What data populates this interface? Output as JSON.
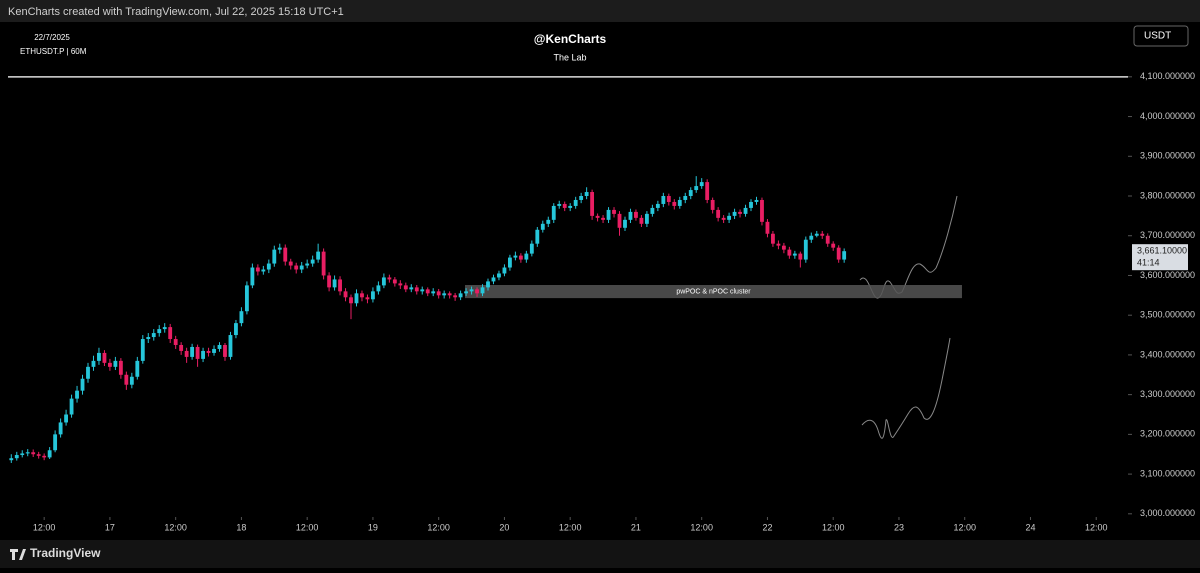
{
  "header": {
    "credit": "KenCharts created with TradingView.com, Jul 22, 2025 15:18 UTC+1",
    "date": "22/7/2025",
    "symbol": "ETHUSDT.P | 60M",
    "author": "@KenCharts",
    "subtitle": "The Lab",
    "currency": "USDT",
    "footer": "TradingView"
  },
  "chart_data": {
    "type": "candlestick",
    "up_color": "#26c6da",
    "down_color": "#e91e63",
    "xlim": [
      5.4,
      209.8
    ],
    "xticks": [
      {
        "value": 12,
        "label": "12:00"
      },
      {
        "value": 24,
        "label": "17"
      },
      {
        "value": 36,
        "label": "12:00"
      },
      {
        "value": 48,
        "label": "18"
      },
      {
        "value": 60,
        "label": "12:00"
      },
      {
        "value": 72,
        "label": "19"
      },
      {
        "value": 84,
        "label": "12:00"
      },
      {
        "value": 96,
        "label": "20"
      },
      {
        "value": 108,
        "label": "12:00"
      },
      {
        "value": 120,
        "label": "21"
      },
      {
        "value": 132,
        "label": "12:00"
      },
      {
        "value": 144,
        "label": "22"
      },
      {
        "value": 156,
        "label": "12:00"
      },
      {
        "value": 168,
        "label": "23"
      },
      {
        "value": 180,
        "label": "12:00"
      },
      {
        "value": 192,
        "label": "24"
      },
      {
        "value": 204,
        "label": "12:00"
      }
    ],
    "ylim": [
      2992,
      4238
    ],
    "yticks": [
      {
        "value": 3000,
        "label": "3,000.000000"
      },
      {
        "value": 3100,
        "label": "3,100.000000"
      },
      {
        "value": 3200,
        "label": "3,200.000000"
      },
      {
        "value": 3300,
        "label": "3,300.000000"
      },
      {
        "value": 3400,
        "label": "3,400.000000"
      },
      {
        "value": 3500,
        "label": "3,500.000000"
      },
      {
        "value": 3600,
        "label": "3,600.000000"
      },
      {
        "value": 3700,
        "label": "3,700.000000"
      },
      {
        "value": 3800,
        "label": "3,800.000000"
      },
      {
        "value": 3900,
        "label": "3,900.000000"
      },
      {
        "value": 4000,
        "label": "4,000.000000"
      },
      {
        "value": 4100,
        "label": "4,100.000000"
      }
    ],
    "hline": 4100,
    "zone": {
      "label": "pwPOC & nPOC cluster",
      "x": [
        88.8,
        179.5
      ],
      "y": [
        3543,
        3576
      ]
    },
    "last_price": {
      "value": 3661.1,
      "label": "3,661.10000"
    },
    "countdown": "41:14",
    "x": [
      6,
      7,
      8,
      9,
      10,
      11,
      12,
      13,
      14,
      15,
      16,
      17,
      18,
      19,
      20,
      21,
      22,
      23,
      24,
      25,
      26,
      27,
      28,
      29,
      30,
      31,
      32,
      33,
      34,
      35,
      36,
      37,
      38,
      39,
      40,
      41,
      42,
      43,
      44,
      45,
      46,
      47,
      48,
      49,
      50,
      51,
      52,
      53,
      54,
      55,
      56,
      57,
      58,
      59,
      60,
      61,
      62,
      63,
      64,
      65,
      66,
      67,
      68,
      69,
      70,
      71,
      72,
      73,
      74,
      75,
      76,
      77,
      78,
      79,
      80,
      81,
      82,
      83,
      84,
      85,
      86,
      87,
      88,
      89,
      90,
      91,
      92,
      93,
      94,
      95,
      96,
      97,
      98,
      99,
      100,
      101,
      102,
      103,
      104,
      105,
      106,
      107,
      108,
      109,
      110,
      111,
      112,
      113,
      114,
      115,
      116,
      117,
      118,
      119,
      120,
      121,
      122,
      123,
      124,
      125,
      126,
      127,
      128,
      129,
      130,
      131,
      132,
      133,
      134,
      135,
      136,
      137,
      138,
      139,
      140,
      141,
      142,
      143,
      144,
      145,
      146,
      147,
      148,
      149,
      150,
      151,
      152,
      153,
      154,
      155,
      156,
      157,
      158
    ],
    "candles": [
      [
        3135,
        3150,
        3128,
        3140
      ],
      [
        3140,
        3156,
        3134,
        3148
      ],
      [
        3148,
        3160,
        3142,
        3152
      ],
      [
        3152,
        3163,
        3145,
        3155
      ],
      [
        3155,
        3162,
        3143,
        3150
      ],
      [
        3150,
        3156,
        3139,
        3146
      ],
      [
        3146,
        3152,
        3135,
        3142
      ],
      [
        3142,
        3168,
        3138,
        3160
      ],
      [
        3160,
        3210,
        3155,
        3200
      ],
      [
        3200,
        3240,
        3192,
        3230
      ],
      [
        3230,
        3262,
        3222,
        3250
      ],
      [
        3250,
        3300,
        3242,
        3290
      ],
      [
        3290,
        3322,
        3280,
        3310
      ],
      [
        3310,
        3350,
        3300,
        3340
      ],
      [
        3340,
        3380,
        3330,
        3370
      ],
      [
        3370,
        3398,
        3360,
        3385
      ],
      [
        3385,
        3418,
        3375,
        3405
      ],
      [
        3405,
        3412,
        3372,
        3380
      ],
      [
        3380,
        3390,
        3360,
        3370
      ],
      [
        3370,
        3395,
        3362,
        3385
      ],
      [
        3385,
        3392,
        3340,
        3350
      ],
      [
        3350,
        3358,
        3312,
        3325
      ],
      [
        3325,
        3355,
        3316,
        3345
      ],
      [
        3345,
        3395,
        3338,
        3385
      ],
      [
        3385,
        3450,
        3378,
        3440
      ],
      [
        3440,
        3455,
        3430,
        3445
      ],
      [
        3445,
        3465,
        3436,
        3455
      ],
      [
        3455,
        3475,
        3446,
        3465
      ],
      [
        3465,
        3480,
        3456,
        3470
      ],
      [
        3470,
        3478,
        3430,
        3440
      ],
      [
        3440,
        3448,
        3415,
        3425
      ],
      [
        3425,
        3432,
        3400,
        3410
      ],
      [
        3410,
        3418,
        3380,
        3395
      ],
      [
        3395,
        3428,
        3388,
        3420
      ],
      [
        3420,
        3426,
        3370,
        3390
      ],
      [
        3390,
        3418,
        3382,
        3410
      ],
      [
        3410,
        3418,
        3396,
        3405
      ],
      [
        3405,
        3424,
        3398,
        3415
      ],
      [
        3415,
        3432,
        3408,
        3425
      ],
      [
        3425,
        3430,
        3385,
        3395
      ],
      [
        3395,
        3458,
        3388,
        3450
      ],
      [
        3450,
        3488,
        3442,
        3480
      ],
      [
        3480,
        3520,
        3472,
        3510
      ],
      [
        3510,
        3585,
        3502,
        3575
      ],
      [
        3575,
        3630,
        3568,
        3620
      ],
      [
        3620,
        3628,
        3600,
        3610
      ],
      [
        3610,
        3624,
        3602,
        3615
      ],
      [
        3615,
        3640,
        3606,
        3630
      ],
      [
        3630,
        3675,
        3622,
        3665
      ],
      [
        3665,
        3680,
        3655,
        3670
      ],
      [
        3670,
        3678,
        3625,
        3635
      ],
      [
        3635,
        3642,
        3615,
        3625
      ],
      [
        3625,
        3632,
        3605,
        3615
      ],
      [
        3615,
        3634,
        3606,
        3625
      ],
      [
        3625,
        3640,
        3618,
        3630
      ],
      [
        3630,
        3650,
        3622,
        3640
      ],
      [
        3640,
        3680,
        3632,
        3660
      ],
      [
        3660,
        3668,
        3590,
        3600
      ],
      [
        3600,
        3608,
        3560,
        3570
      ],
      [
        3570,
        3600,
        3562,
        3590
      ],
      [
        3590,
        3598,
        3550,
        3560
      ],
      [
        3560,
        3568,
        3535,
        3545
      ],
      [
        3545,
        3552,
        3490,
        3530
      ],
      [
        3530,
        3565,
        3522,
        3555
      ],
      [
        3555,
        3562,
        3535,
        3545
      ],
      [
        3545,
        3552,
        3530,
        3540
      ],
      [
        3540,
        3570,
        3532,
        3560
      ],
      [
        3560,
        3585,
        3552,
        3575
      ],
      [
        3575,
        3605,
        3568,
        3595
      ],
      [
        3595,
        3602,
        3582,
        3590
      ],
      [
        3590,
        3596,
        3572,
        3580
      ],
      [
        3580,
        3588,
        3566,
        3575
      ],
      [
        3575,
        3582,
        3558,
        3565
      ],
      [
        3565,
        3578,
        3558,
        3570
      ],
      [
        3570,
        3576,
        3552,
        3560
      ],
      [
        3560,
        3572,
        3552,
        3565
      ],
      [
        3565,
        3570,
        3548,
        3555
      ],
      [
        3555,
        3568,
        3548,
        3560
      ],
      [
        3560,
        3566,
        3542,
        3550
      ],
      [
        3550,
        3562,
        3542,
        3555
      ],
      [
        3555,
        3560,
        3542,
        3550
      ],
      [
        3550,
        3556,
        3536,
        3545
      ],
      [
        3545,
        3562,
        3538,
        3555
      ],
      [
        3555,
        3568,
        3548,
        3560
      ],
      [
        3560,
        3572,
        3552,
        3565
      ],
      [
        3565,
        3570,
        3546,
        3555
      ],
      [
        3555,
        3578,
        3548,
        3570
      ],
      [
        3570,
        3592,
        3562,
        3585
      ],
      [
        3585,
        3602,
        3578,
        3595
      ],
      [
        3595,
        3612,
        3588,
        3605
      ],
      [
        3605,
        3628,
        3598,
        3620
      ],
      [
        3620,
        3652,
        3612,
        3645
      ],
      [
        3645,
        3660,
        3638,
        3650
      ],
      [
        3650,
        3656,
        3632,
        3640
      ],
      [
        3640,
        3662,
        3632,
        3655
      ],
      [
        3655,
        3688,
        3648,
        3680
      ],
      [
        3680,
        3722,
        3672,
        3715
      ],
      [
        3715,
        3738,
        3708,
        3730
      ],
      [
        3730,
        3748,
        3722,
        3740
      ],
      [
        3740,
        3782,
        3732,
        3775
      ],
      [
        3775,
        3788,
        3768,
        3780
      ],
      [
        3780,
        3786,
        3762,
        3770
      ],
      [
        3770,
        3782,
        3762,
        3775
      ],
      [
        3775,
        3798,
        3768,
        3790
      ],
      [
        3790,
        3808,
        3782,
        3800
      ],
      [
        3800,
        3822,
        3792,
        3810
      ],
      [
        3810,
        3816,
        3740,
        3750
      ],
      [
        3750,
        3756,
        3736,
        3745
      ],
      [
        3745,
        3752,
        3732,
        3740
      ],
      [
        3740,
        3772,
        3732,
        3765
      ],
      [
        3765,
        3772,
        3746,
        3755
      ],
      [
        3755,
        3762,
        3700,
        3720
      ],
      [
        3720,
        3748,
        3712,
        3740
      ],
      [
        3740,
        3768,
        3732,
        3760
      ],
      [
        3760,
        3766,
        3738,
        3745
      ],
      [
        3745,
        3752,
        3722,
        3730
      ],
      [
        3730,
        3762,
        3722,
        3755
      ],
      [
        3755,
        3778,
        3748,
        3770
      ],
      [
        3770,
        3788,
        3762,
        3780
      ],
      [
        3780,
        3808,
        3772,
        3800
      ],
      [
        3800,
        3806,
        3776,
        3785
      ],
      [
        3785,
        3792,
        3766,
        3775
      ],
      [
        3775,
        3798,
        3768,
        3790
      ],
      [
        3790,
        3808,
        3782,
        3800
      ],
      [
        3800,
        3822,
        3792,
        3815
      ],
      [
        3815,
        3850,
        3808,
        3825
      ],
      [
        3825,
        3845,
        3818,
        3835
      ],
      [
        3835,
        3842,
        3782,
        3790
      ],
      [
        3790,
        3796,
        3756,
        3765
      ],
      [
        3765,
        3772,
        3736,
        3745
      ],
      [
        3745,
        3752,
        3732,
        3740
      ],
      [
        3740,
        3758,
        3732,
        3750
      ],
      [
        3750,
        3768,
        3742,
        3760
      ],
      [
        3760,
        3766,
        3746,
        3755
      ],
      [
        3755,
        3778,
        3748,
        3770
      ],
      [
        3770,
        3792,
        3762,
        3785
      ],
      [
        3785,
        3798,
        3778,
        3790
      ],
      [
        3790,
        3796,
        3726,
        3735
      ],
      [
        3735,
        3742,
        3696,
        3705
      ],
      [
        3705,
        3712,
        3672,
        3680
      ],
      [
        3680,
        3688,
        3666,
        3675
      ],
      [
        3675,
        3682,
        3656,
        3665
      ],
      [
        3665,
        3672,
        3642,
        3650
      ],
      [
        3650,
        3662,
        3642,
        3655
      ],
      [
        3655,
        3660,
        3620,
        3640
      ],
      [
        3640,
        3698,
        3632,
        3690
      ],
      [
        3690,
        3708,
        3682,
        3700
      ],
      [
        3700,
        3712,
        3696,
        3705
      ],
      [
        3705,
        3712,
        3692,
        3700
      ],
      [
        3700,
        3706,
        3672,
        3680
      ],
      [
        3680,
        3686,
        3662,
        3670
      ],
      [
        3670,
        3676,
        3632,
        3640
      ],
      [
        3640,
        3668,
        3632,
        3661.1
      ]
    ]
  }
}
